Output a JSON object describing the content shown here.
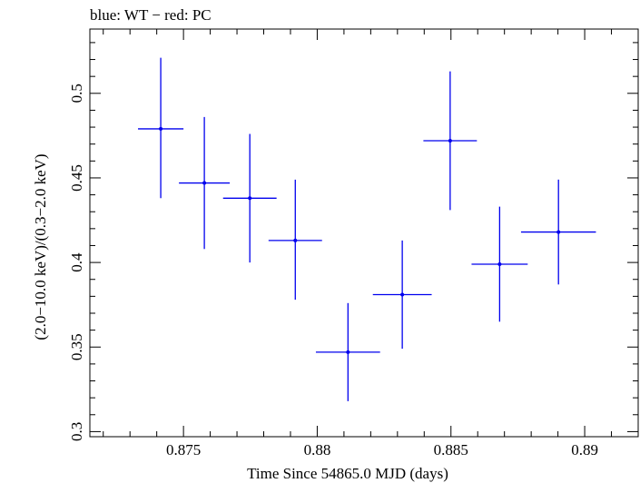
{
  "chart_data": {
    "type": "scatter",
    "title": "blue: WT − red: PC",
    "xlabel": "Time Since 54865.0 MJD (days)",
    "ylabel": "(2.0−10.0 keV)/(0.3−2.0 keV)",
    "xlim": [
      0.8715,
      0.892
    ],
    "ylim": [
      0.297,
      0.538
    ],
    "x_ticks": [
      0.875,
      0.88,
      0.885,
      0.89
    ],
    "x_tick_labels": [
      "0.875",
      "0.88",
      "0.885",
      "0.89"
    ],
    "y_ticks": [
      0.3,
      0.35,
      0.4,
      0.45,
      0.5
    ],
    "y_tick_labels": [
      "0.3",
      "0.35",
      "0.4",
      "0.45",
      "0.5"
    ],
    "grid": false,
    "series": [
      {
        "color": "#0000ee",
        "points": [
          {
            "x": 0.87415,
            "y": 0.479,
            "xerr": 0.00085,
            "yerr_low": 0.041,
            "yerr_high": 0.042
          },
          {
            "x": 0.87578,
            "y": 0.447,
            "xerr": 0.00095,
            "yerr_low": 0.039,
            "yerr_high": 0.039
          },
          {
            "x": 0.87748,
            "y": 0.438,
            "xerr": 0.001,
            "yerr_low": 0.038,
            "yerr_high": 0.038
          },
          {
            "x": 0.87918,
            "y": 0.413,
            "xerr": 0.001,
            "yerr_low": 0.035,
            "yerr_high": 0.036
          },
          {
            "x": 0.88115,
            "y": 0.347,
            "xerr": 0.0012,
            "yerr_low": 0.029,
            "yerr_high": 0.029
          },
          {
            "x": 0.88318,
            "y": 0.381,
            "xerr": 0.0011,
            "yerr_low": 0.032,
            "yerr_high": 0.032
          },
          {
            "x": 0.88497,
            "y": 0.472,
            "xerr": 0.001,
            "yerr_low": 0.041,
            "yerr_high": 0.041
          },
          {
            "x": 0.88682,
            "y": 0.399,
            "xerr": 0.00105,
            "yerr_low": 0.034,
            "yerr_high": 0.034
          },
          {
            "x": 0.88902,
            "y": 0.418,
            "xerr": 0.0014,
            "yerr_low": 0.031,
            "yerr_high": 0.031
          }
        ]
      }
    ]
  }
}
